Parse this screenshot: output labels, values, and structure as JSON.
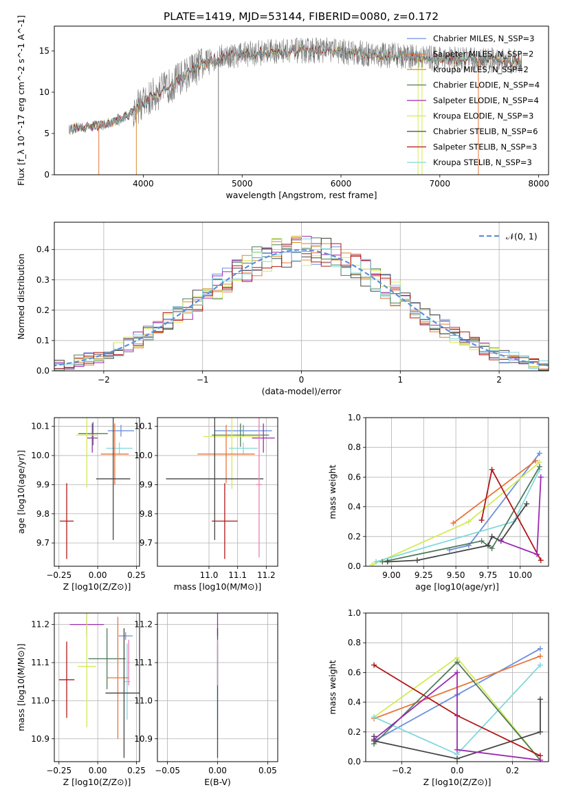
{
  "figure": {
    "title": "PLATE=1419, MJD=53144, FIBERID=0080, z=0.172"
  },
  "colors": {
    "chab_miles": "#6a8fdc",
    "salp_miles": "#e8763a",
    "krou_miles": "#d8892f",
    "chab_elodie": "#4f7a5a",
    "salp_elodie": "#9a2ab0",
    "krou_elodie": "#d4ea55",
    "chab_stelib": "#444444",
    "salp_stelib": "#b01515",
    "krou_stelib": "#7fd8dd",
    "data_gray": "#777777",
    "gauss": "#5b8fd9",
    "grid": "#b0b0b0",
    "pink": "#e87fb5"
  },
  "chart_data": [
    {
      "id": "spectrum",
      "type": "line",
      "xlabel": "wavelength [Angstrom, rest frame]",
      "ylabel": "Flux [f_λ 10^-17 erg cm^-2 s^-1 A^-1]",
      "xlim": [
        3100,
        8100
      ],
      "ylim": [
        0,
        18
      ],
      "xticks": [
        4000,
        5000,
        6000,
        7000,
        8000
      ],
      "yticks": [
        0,
        5,
        10,
        15
      ],
      "grid": false,
      "legend_position": "upper right",
      "legend": [
        {
          "label": "Chabrier MILES, N_SSP=3",
          "color": "#6a8fdc"
        },
        {
          "label": "Salpeter MILES, N_SSP=2",
          "color": "#e8763a"
        },
        {
          "label": "Kroupa MILES, N_SSP=2",
          "color": "#d8892f"
        },
        {
          "label": "Chabrier ELODIE, N_SSP=4",
          "color": "#4f7a5a"
        },
        {
          "label": "Salpeter ELODIE, N_SSP=4",
          "color": "#9a2ab0"
        },
        {
          "label": "Kroupa ELODIE, N_SSP=3",
          "color": "#d4ea55"
        },
        {
          "label": "Chabrier STELIB, N_SSP=6",
          "color": "#444444"
        },
        {
          "label": "Salpeter STELIB, N_SSP=3",
          "color": "#b01515"
        },
        {
          "label": "Kroupa STELIB, N_SSP=3",
          "color": "#7fd8dd"
        }
      ],
      "continuum_x": [
        3250,
        3450,
        3650,
        3800,
        3950,
        4100,
        4300,
        4450,
        4600,
        4800,
        5000,
        5200,
        5400,
        5600,
        5800,
        6000,
        6200,
        6400,
        6600,
        6800,
        7000,
        7200,
        7400,
        7600,
        7800
      ],
      "continuum_y": [
        5.5,
        5.9,
        6.2,
        6.9,
        8.2,
        9.6,
        11.0,
        12.3,
        13.4,
        14.3,
        14.6,
        14.8,
        15.0,
        15.0,
        15.1,
        14.9,
        14.7,
        14.5,
        14.4,
        14.2,
        14.1,
        13.9,
        13.9,
        13.8,
        13.7
      ],
      "drops_x": [
        3550,
        3930,
        4760,
        6780,
        6820,
        7390
      ]
    },
    {
      "id": "residuals",
      "type": "histogram",
      "xlabel": "(data-model)/error",
      "ylabel": "Normed distribution",
      "xlim": [
        -2.5,
        2.5
      ],
      "ylim": [
        0,
        0.49
      ],
      "xticks": [
        -2,
        -1,
        0,
        1,
        2
      ],
      "yticks": [
        0.0,
        0.1,
        0.2,
        0.3,
        0.4
      ],
      "grid": true,
      "legend_position": "upper right",
      "legend": [
        {
          "label": "𝒩(0, 1)",
          "color": "#5b8fd9"
        }
      ],
      "bin_width": 0.1
    },
    {
      "id": "z_age",
      "type": "errorbar",
      "xlabel": "Z [log10(Z/Z⊙)]",
      "ylabel": "age  [log10(age/yr)]",
      "xlim": [
        -0.28,
        0.27
      ],
      "ylim": [
        9.62,
        10.13
      ],
      "xticks": [
        -0.25,
        0.0,
        0.25
      ],
      "yticks": [
        9.7,
        9.8,
        9.9,
        10.0,
        10.1
      ],
      "grid": true,
      "points": [
        {
          "c": "#6a8fdc",
          "x": 0.15,
          "xe": 0.085,
          "y": 10.085,
          "ye": 0.02
        },
        {
          "c": "#9a2ab0",
          "x": -0.035,
          "xe": 0.035,
          "y": 10.06,
          "ye": 0.05
        },
        {
          "c": "#4f7a5a",
          "x": -0.03,
          "xe": 0.095,
          "y": 10.075,
          "ye": 0.04
        },
        {
          "c": "#d4ea55",
          "x": -0.07,
          "xe": 0.07,
          "y": 10.07,
          "ye": 0.18
        },
        {
          "c": "#7fd8dd",
          "x": 0.14,
          "xe": 0.085,
          "y": 10.025,
          "ye": 0.02
        },
        {
          "c": "#e8763a",
          "x": 0.11,
          "xe": 0.09,
          "y": 10.005,
          "ye": 0.105
        },
        {
          "c": "#444444",
          "x": 0.1,
          "xe": 0.11,
          "y": 9.92,
          "ye": 0.21
        },
        {
          "c": "#b01515",
          "x": -0.2,
          "xe": 0.045,
          "y": 9.775,
          "ye": 0.13
        }
      ]
    },
    {
      "id": "mass_age",
      "type": "errorbar",
      "xlabel": "mass [log10(M/M⊙)]",
      "ylabel": "",
      "xlim": [
        10.82,
        11.24
      ],
      "ylim": [
        9.62,
        10.13
      ],
      "xticks": [
        11.0,
        11.1,
        11.2
      ],
      "yticks": [
        9.7,
        9.8,
        9.9,
        10.0,
        10.1
      ],
      "grid": true,
      "points": [
        {
          "c": "#6a8fdc",
          "x": 11.12,
          "xe": 0.1,
          "y": 10.085,
          "ye": 0.02
        },
        {
          "c": "#9a2ab0",
          "x": 11.19,
          "xe": 0.04,
          "y": 10.06,
          "ye": 0.05
        },
        {
          "c": "#4f7a5a",
          "x": 11.11,
          "xe": 0.1,
          "y": 10.07,
          "ye": 0.04
        },
        {
          "c": "#d4ea55",
          "x": 11.08,
          "xe": 0.1,
          "y": 10.065,
          "ye": 0.18
        },
        {
          "c": "#7fd8dd",
          "x": 11.12,
          "xe": 0.05,
          "y": 10.025,
          "ye": 0.02
        },
        {
          "c": "#e8763a",
          "x": 11.06,
          "xe": 0.1,
          "y": 10.005,
          "ye": 0.1
        },
        {
          "c": "#444444",
          "x": 11.02,
          "xe": 0.17,
          "y": 9.92,
          "ye": 0.21
        },
        {
          "c": "#b01515",
          "x": 11.055,
          "xe": 0.045,
          "y": 9.775,
          "ye": 0.13
        },
        {
          "c": "#e87fb5",
          "x": 11.175,
          "xe": 0.01,
          "y": 9.9,
          "ye": 0.25
        }
      ]
    },
    {
      "id": "age_weight",
      "type": "line",
      "xlabel": "age  [log10(age/yr)]",
      "ylabel": "mass weight",
      "xlim": [
        8.8,
        10.22
      ],
      "ylim": [
        0,
        1
      ],
      "xticks": [
        9.0,
        9.25,
        9.5,
        9.75,
        10.0
      ],
      "yticks": [
        0.0,
        0.2,
        0.4,
        0.6,
        0.8,
        1.0
      ],
      "grid": true,
      "series": [
        {
          "c": "#6a8fdc",
          "x": [
            9.45,
            9.6,
            10.15
          ],
          "y": [
            0.11,
            0.14,
            0.76
          ]
        },
        {
          "c": "#e8763a",
          "x": [
            9.48,
            10.12
          ],
          "y": [
            0.29,
            0.71
          ]
        },
        {
          "c": "#d4ea55",
          "x": [
            8.85,
            9.6,
            10.15
          ],
          "y": [
            0.01,
            0.3,
            0.7
          ]
        },
        {
          "c": "#7fd8dd",
          "x": [
            8.88,
            9.95,
            10.15
          ],
          "y": [
            0.03,
            0.3,
            0.65
          ]
        },
        {
          "c": "#4f7a5a",
          "x": [
            8.93,
            9.7,
            9.78,
            10.15
          ],
          "y": [
            0.03,
            0.17,
            0.12,
            0.67
          ]
        },
        {
          "c": "#444444",
          "x": [
            8.97,
            9.2,
            9.75,
            9.78,
            9.85,
            10.05
          ],
          "y": [
            0.03,
            0.04,
            0.14,
            0.2,
            0.17,
            0.42
          ]
        },
        {
          "c": "#b01515",
          "x": [
            9.7,
            9.78,
            10.16
          ],
          "y": [
            0.31,
            0.65,
            0.04
          ]
        },
        {
          "c": "#9a2ab0",
          "x": [
            9.85,
            10.13,
            10.16
          ],
          "y": [
            0.17,
            0.08,
            0.6
          ]
        }
      ]
    },
    {
      "id": "z_mass",
      "type": "errorbar",
      "xlabel": "Z [log10(Z/Z⊙)]",
      "ylabel": "mass [log10(M/M⊙)]",
      "xlim": [
        -0.28,
        0.27
      ],
      "ylim": [
        10.84,
        11.23
      ],
      "xticks": [
        -0.25,
        0.0,
        0.25
      ],
      "yticks": [
        10.9,
        11.0,
        11.1,
        11.2
      ],
      "grid": true,
      "points": [
        {
          "c": "#9a2ab0",
          "x": -0.07,
          "xe": 0.11,
          "y": 11.2,
          "ye": 0.03
        },
        {
          "c": "#6a8fdc",
          "x": 0.18,
          "xe": 0.045,
          "y": 11.17,
          "ye": 0.01
        },
        {
          "c": "#4f7a5a",
          "x": 0.06,
          "xe": 0.12,
          "y": 11.11,
          "ye": 0.08
        },
        {
          "c": "#d4ea55",
          "x": -0.07,
          "xe": 0.06,
          "y": 11.09,
          "ye": 0.16
        },
        {
          "c": "#7fd8dd",
          "x": 0.19,
          "xe": 0.02,
          "y": 11.05,
          "ye": 0.1
        },
        {
          "c": "#e8763a",
          "x": 0.13,
          "xe": 0.07,
          "y": 11.06,
          "ye": 0.16
        },
        {
          "c": "#444444",
          "x": 0.17,
          "xe": 0.12,
          "y": 11.02,
          "ye": 0.17
        },
        {
          "c": "#b01515",
          "x": -0.2,
          "xe": 0.05,
          "y": 11.055,
          "ye": 0.1
        },
        {
          "c": "#e87fb5",
          "x": 0.2,
          "xe": 0.005,
          "y": 11.1,
          "ye": 0.06
        }
      ]
    },
    {
      "id": "ebv_mass",
      "type": "errorbar",
      "xlabel": "E(B-V)",
      "ylabel": "",
      "xlim": [
        -0.06,
        0.06
      ],
      "ylim": [
        10.84,
        11.23
      ],
      "xticks": [
        -0.05,
        0.0,
        0.05
      ],
      "yticks": [
        10.9,
        11.0,
        11.1,
        11.2
      ],
      "grid": true,
      "points": [
        {
          "c": "#9a2ab0",
          "x": 0.0,
          "xe": 0,
          "y": 11.2,
          "ye": 0.03
        },
        {
          "c": "#7fd8dd",
          "x": 0.0,
          "xe": 0,
          "y": 11.05,
          "ye": 0.1
        },
        {
          "c": "#444444",
          "x": 0.0,
          "xe": 0,
          "y": 11.02,
          "ye": 0.17
        },
        {
          "c": "#e87fb5",
          "x": 0.0,
          "xe": 0,
          "y": 11.1,
          "ye": 0.06
        }
      ]
    },
    {
      "id": "z_weight",
      "type": "line",
      "xlabel": "Z [log10(Z/Z⊙)]",
      "ylabel": "mass weight",
      "xlim": [
        -0.33,
        0.33
      ],
      "ylim": [
        0,
        1
      ],
      "xticks": [
        -0.2,
        0.0,
        0.2
      ],
      "yticks": [
        0.0,
        0.2,
        0.4,
        0.6,
        0.8,
        1.0
      ],
      "grid": true,
      "series": [
        {
          "c": "#6a8fdc",
          "x": [
            -0.3,
            0.0,
            0.3
          ],
          "y": [
            0.14,
            0.45,
            0.76
          ]
        },
        {
          "c": "#e8763a",
          "x": [
            -0.3,
            0.3
          ],
          "y": [
            0.29,
            0.71
          ]
        },
        {
          "c": "#d4ea55",
          "x": [
            -0.3,
            0.0,
            0.3
          ],
          "y": [
            0.3,
            0.7,
            0.01
          ]
        },
        {
          "c": "#7fd8dd",
          "x": [
            -0.3,
            0.0,
            0.3
          ],
          "y": [
            0.3,
            0.05,
            0.65
          ]
        },
        {
          "c": "#4f7a5a",
          "x": [
            -0.3,
            0.0,
            0.3
          ],
          "y": [
            0.12,
            0.67,
            0.01
          ]
        },
        {
          "c": "#444444",
          "x": [
            -0.3,
            -0.3,
            0.0,
            0.3,
            0.3
          ],
          "y": [
            0.17,
            0.14,
            0.02,
            0.2,
            0.42
          ]
        },
        {
          "c": "#b01515",
          "x": [
            -0.3,
            0.0,
            0.3
          ],
          "y": [
            0.65,
            0.31,
            0.04
          ]
        },
        {
          "c": "#9a2ab0",
          "x": [
            -0.3,
            0.0,
            0.0,
            0.3
          ],
          "y": [
            0.15,
            0.6,
            0.08,
            0.01
          ]
        }
      ]
    }
  ]
}
